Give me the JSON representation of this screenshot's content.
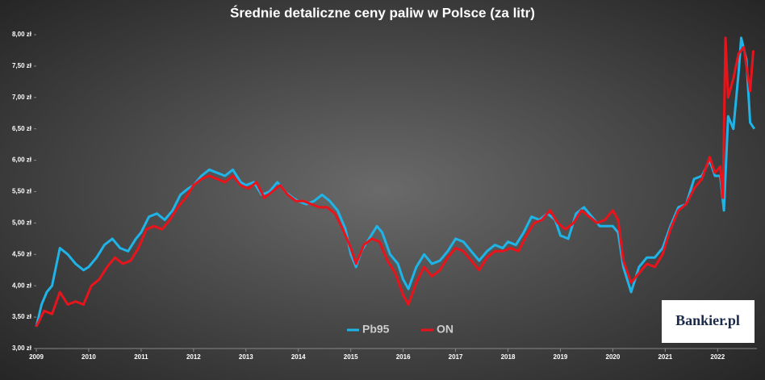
{
  "chart_data": {
    "type": "line",
    "title": "Średnie detaliczne ceny paliw w Polsce (za litr)",
    "logo": "Bankier.pl",
    "xlim": [
      2009,
      2022.75
    ],
    "xticks": [
      2009,
      2010,
      2011,
      2012,
      2013,
      2014,
      2015,
      2016,
      2017,
      2018,
      2019,
      2020,
      2021,
      2022
    ],
    "ylim": [
      3,
      8
    ],
    "yticks": [
      {
        "value": 3,
        "label": "3,00 zł"
      },
      {
        "value": 3.5,
        "label": "3,50 zł"
      },
      {
        "value": 4,
        "label": "4,00 zł"
      },
      {
        "value": 4.5,
        "label": "4,50 zł"
      },
      {
        "value": 5,
        "label": "5,00 zł"
      },
      {
        "value": 5.5,
        "label": "5,50 zł"
      },
      {
        "value": 6,
        "label": "6,00 zł"
      },
      {
        "value": 6.5,
        "label": "6,50 zł"
      },
      {
        "value": 7,
        "label": "7,00 zł"
      },
      {
        "value": 7.5,
        "label": "7,50 zł"
      },
      {
        "value": 8,
        "label": "8,00 zł"
      }
    ],
    "grid": false,
    "legend": "bottom",
    "series": [
      {
        "name": "Pb95",
        "color": "#1fb4e8",
        "x": [
          2009.0,
          2009.1,
          2009.2,
          2009.3,
          2009.45,
          2009.6,
          2009.75,
          2009.9,
          2010.0,
          2010.15,
          2010.3,
          2010.45,
          2010.6,
          2010.75,
          2010.9,
          2011.0,
          2011.15,
          2011.3,
          2011.45,
          2011.6,
          2011.75,
          2011.9,
          2012.0,
          2012.15,
          2012.3,
          2012.45,
          2012.6,
          2012.75,
          2012.9,
          2013.0,
          2013.15,
          2013.3,
          2013.45,
          2013.6,
          2013.75,
          2013.9,
          2014.0,
          2014.15,
          2014.3,
          2014.45,
          2014.6,
          2014.75,
          2014.9,
          2015.0,
          2015.1,
          2015.2,
          2015.35,
          2015.5,
          2015.6,
          2015.75,
          2015.9,
          2016.0,
          2016.1,
          2016.25,
          2016.4,
          2016.55,
          2016.7,
          2016.85,
          2017.0,
          2017.15,
          2017.3,
          2017.45,
          2017.6,
          2017.75,
          2017.9,
          2018.0,
          2018.15,
          2018.3,
          2018.45,
          2018.6,
          2018.75,
          2018.9,
          2019.0,
          2019.15,
          2019.3,
          2019.45,
          2019.6,
          2019.75,
          2019.9,
          2020.0,
          2020.1,
          2020.2,
          2020.35,
          2020.5,
          2020.65,
          2020.8,
          2020.95,
          2021.1,
          2021.25,
          2021.4,
          2021.55,
          2021.7,
          2021.85,
          2021.95,
          2022.05,
          2022.12,
          2022.2,
          2022.3,
          2022.4,
          2022.45,
          2022.55,
          2022.62,
          2022.7
        ],
        "values": [
          3.35,
          3.7,
          3.9,
          4.0,
          4.6,
          4.5,
          4.35,
          4.25,
          4.3,
          4.45,
          4.65,
          4.75,
          4.6,
          4.55,
          4.75,
          4.85,
          5.1,
          5.15,
          5.05,
          5.2,
          5.45,
          5.55,
          5.6,
          5.75,
          5.85,
          5.8,
          5.75,
          5.85,
          5.65,
          5.6,
          5.65,
          5.45,
          5.5,
          5.65,
          5.5,
          5.4,
          5.35,
          5.3,
          5.35,
          5.45,
          5.35,
          5.2,
          4.9,
          4.5,
          4.3,
          4.55,
          4.75,
          4.95,
          4.85,
          4.5,
          4.35,
          4.1,
          3.95,
          4.3,
          4.5,
          4.35,
          4.4,
          4.55,
          4.75,
          4.7,
          4.55,
          4.4,
          4.55,
          4.65,
          4.6,
          4.7,
          4.65,
          4.85,
          5.1,
          5.05,
          5.15,
          5.05,
          4.8,
          4.75,
          5.15,
          5.25,
          5.1,
          4.95,
          4.95,
          4.95,
          4.85,
          4.3,
          3.9,
          4.3,
          4.45,
          4.45,
          4.6,
          4.95,
          5.25,
          5.3,
          5.7,
          5.75,
          6.0,
          5.75,
          5.75,
          5.2,
          6.7,
          6.5,
          7.4,
          7.95,
          7.6,
          6.6,
          6.5
        ]
      },
      {
        "name": "ON",
        "color": "#e8141b",
        "x": [
          2009.0,
          2009.15,
          2009.3,
          2009.45,
          2009.6,
          2009.75,
          2009.9,
          2010.05,
          2010.2,
          2010.35,
          2010.5,
          2010.65,
          2010.8,
          2010.95,
          2011.1,
          2011.25,
          2011.4,
          2011.55,
          2011.7,
          2011.85,
          2012.0,
          2012.15,
          2012.3,
          2012.45,
          2012.6,
          2012.75,
          2012.9,
          2013.05,
          2013.2,
          2013.35,
          2013.5,
          2013.65,
          2013.8,
          2013.95,
          2014.1,
          2014.25,
          2014.4,
          2014.55,
          2014.7,
          2014.85,
          2015.0,
          2015.1,
          2015.25,
          2015.4,
          2015.55,
          2015.7,
          2015.85,
          2016.0,
          2016.1,
          2016.25,
          2016.4,
          2016.55,
          2016.7,
          2016.85,
          2017.0,
          2017.15,
          2017.3,
          2017.45,
          2017.6,
          2017.75,
          2017.9,
          2018.05,
          2018.2,
          2018.35,
          2018.5,
          2018.65,
          2018.8,
          2018.95,
          2019.1,
          2019.25,
          2019.4,
          2019.55,
          2019.7,
          2019.85,
          2020.0,
          2020.1,
          2020.2,
          2020.35,
          2020.5,
          2020.65,
          2020.8,
          2020.95,
          2021.1,
          2021.25,
          2021.4,
          2021.55,
          2021.7,
          2021.85,
          2021.95,
          2022.05,
          2022.1,
          2022.15,
          2022.2,
          2022.3,
          2022.4,
          2022.5,
          2022.55,
          2022.62,
          2022.68
        ],
        "values": [
          3.35,
          3.6,
          3.55,
          3.9,
          3.7,
          3.75,
          3.7,
          4.0,
          4.1,
          4.3,
          4.45,
          4.35,
          4.4,
          4.6,
          4.9,
          4.95,
          4.9,
          5.05,
          5.25,
          5.4,
          5.6,
          5.7,
          5.75,
          5.7,
          5.65,
          5.75,
          5.6,
          5.55,
          5.65,
          5.4,
          5.5,
          5.6,
          5.45,
          5.35,
          5.35,
          5.3,
          5.25,
          5.25,
          5.15,
          4.9,
          4.6,
          4.35,
          4.65,
          4.75,
          4.7,
          4.4,
          4.2,
          3.85,
          3.7,
          4.05,
          4.3,
          4.15,
          4.25,
          4.45,
          4.6,
          4.55,
          4.4,
          4.25,
          4.45,
          4.55,
          4.55,
          4.6,
          4.55,
          4.8,
          5.0,
          5.05,
          5.2,
          5.0,
          4.9,
          5.0,
          5.2,
          5.1,
          5.0,
          5.05,
          5.2,
          5.05,
          4.4,
          4.05,
          4.2,
          4.35,
          4.3,
          4.5,
          4.9,
          5.2,
          5.3,
          5.55,
          5.7,
          6.05,
          5.8,
          5.9,
          5.4,
          7.95,
          7.0,
          7.3,
          7.7,
          7.8,
          7.5,
          7.1,
          7.75
        ]
      }
    ]
  }
}
